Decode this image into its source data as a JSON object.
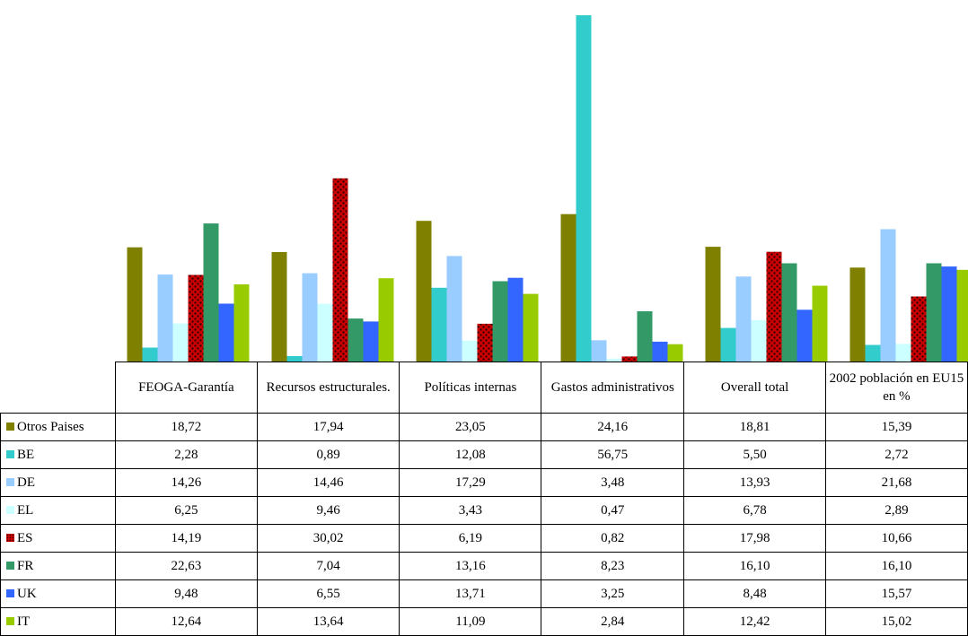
{
  "chart_data": {
    "type": "bar",
    "categories": [
      "FEOGA-Garantía",
      "Recursos estructurales.",
      "Políticas internas",
      "Gastos administrativos",
      "Overall total",
      "2002 población en EU15 en %"
    ],
    "series": [
      {
        "name": "Otros Paises",
        "color": "#808000",
        "values": [
          "18,72",
          "17,94",
          "23,05",
          "24,16",
          "18,81",
          "15,39"
        ]
      },
      {
        "name": "BE",
        "color": "#33CCCC",
        "values": [
          "2,28",
          "0,89",
          "12,08",
          "56,75",
          "5,50",
          "2,72"
        ]
      },
      {
        "name": "DE",
        "color": "#99CCFF",
        "values": [
          "14,26",
          "14,46",
          "17,29",
          "3,48",
          "13,93",
          "21,68"
        ]
      },
      {
        "name": "EL",
        "color": "#CCFFFF",
        "values": [
          "6,25",
          "9,46",
          "3,43",
          "0,47",
          "6,78",
          "2,89"
        ]
      },
      {
        "name": "ES",
        "color": "#CC0000",
        "pattern": "red-dots",
        "values": [
          "14,19",
          "30,02",
          "6,19",
          "0,82",
          "17,98",
          "10,66"
        ]
      },
      {
        "name": "FR",
        "color": "#339966",
        "values": [
          "22,63",
          "7,04",
          "13,16",
          "8,23",
          "16,10",
          "16,10"
        ]
      },
      {
        "name": "UK",
        "color": "#3366FF",
        "values": [
          "9,48",
          "6,55",
          "13,71",
          "3,25",
          "8,48",
          "15,57"
        ]
      },
      {
        "name": "IT",
        "color": "#99CC00",
        "values": [
          "12,64",
          "13,64",
          "11,09",
          "2,84",
          "12,42",
          "15,02"
        ]
      }
    ],
    "ylim": [
      0,
      56.75
    ],
    "grid": false,
    "legend": "data-table-left"
  }
}
